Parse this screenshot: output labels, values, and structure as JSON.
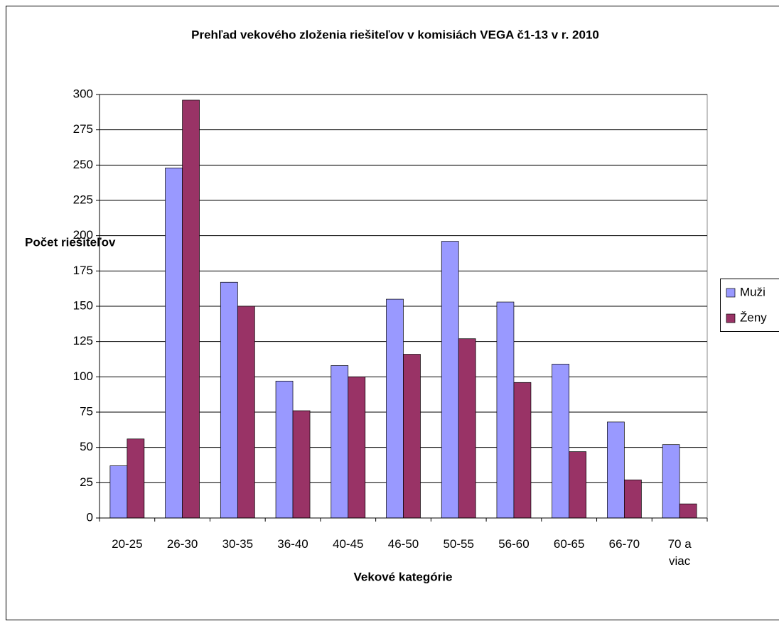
{
  "chart_data": {
    "type": "bar",
    "title": "Prehľad vekového zloženia riešiteľov v komisiách VEGA č1-13 v r. 2010",
    "x_label": "Vekové kategórie",
    "y_label": "Počet riešiteľov",
    "categories": [
      "20-25",
      "26-30",
      "30-35",
      "36-40",
      "40-45",
      "46-50",
      "50-55",
      "56-60",
      "60-65",
      "66-70",
      "70 a viac"
    ],
    "series": [
      {
        "name": "Muži",
        "color": "#9999ff",
        "values": [
          37,
          248,
          167,
          97,
          108,
          155,
          196,
          153,
          109,
          68,
          52
        ]
      },
      {
        "name": "Ženy",
        "color": "#993366",
        "values": [
          56,
          296,
          150,
          76,
          100,
          116,
          127,
          96,
          47,
          27,
          10
        ]
      }
    ],
    "ylim": [
      0,
      300
    ],
    "yticks": [
      0,
      25,
      50,
      75,
      100,
      125,
      150,
      175,
      200,
      225,
      250,
      275,
      300
    ],
    "grid": true,
    "legend": "right"
  }
}
